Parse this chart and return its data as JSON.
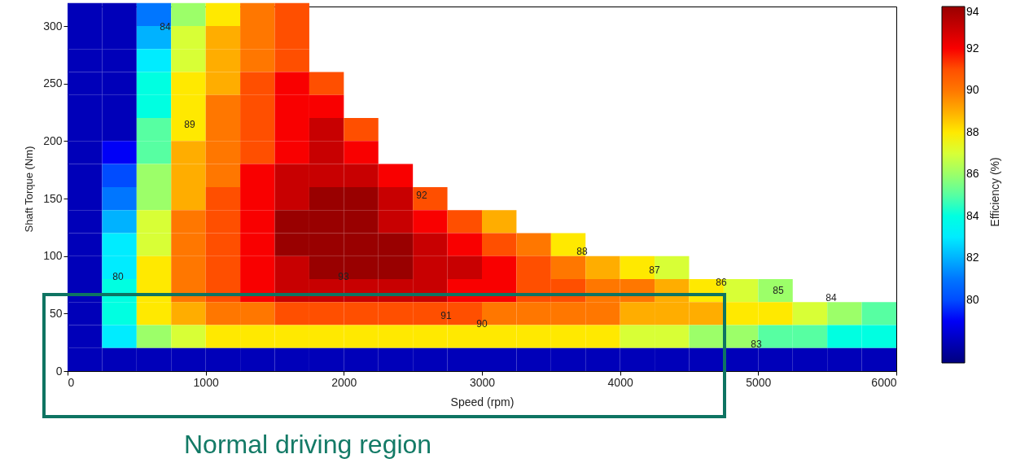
{
  "chart_data": {
    "type": "heatmap",
    "xlabel": "Speed (rpm)",
    "ylabel": "Shaft Torque (Nm)",
    "clabel": "Efficiency (%)",
    "x": [
      125,
      375,
      625,
      875,
      1125,
      1375,
      1625,
      1875,
      2125,
      2375,
      2625,
      2875,
      3125,
      3375,
      3625,
      3875,
      4125,
      4375,
      4625,
      4875,
      5125,
      5375,
      5625,
      5875
    ],
    "y": [
      310,
      290,
      270,
      250,
      230,
      210,
      190,
      170,
      150,
      130,
      110,
      90,
      70,
      50,
      30,
      10
    ],
    "cells": [
      [
        78,
        78,
        81,
        86,
        88,
        90,
        91,
        null,
        null,
        null,
        null,
        null,
        null,
        null,
        null,
        null,
        null,
        null,
        null,
        null,
        null,
        null,
        null,
        null
      ],
      [
        78,
        78,
        82,
        87,
        89,
        90,
        91,
        null,
        null,
        null,
        null,
        null,
        null,
        null,
        null,
        null,
        null,
        null,
        null,
        null,
        null,
        null,
        null,
        null
      ],
      [
        78,
        78,
        83,
        87,
        89,
        90,
        91,
        null,
        null,
        null,
        null,
        null,
        null,
        null,
        null,
        null,
        null,
        null,
        null,
        null,
        null,
        null,
        null,
        null
      ],
      [
        78,
        78,
        84,
        88,
        89,
        91,
        92,
        91,
        null,
        null,
        null,
        null,
        null,
        null,
        null,
        null,
        null,
        null,
        null,
        null,
        null,
        null,
        null,
        null
      ],
      [
        78,
        78,
        84,
        88,
        90,
        91,
        92,
        92,
        null,
        null,
        null,
        null,
        null,
        null,
        null,
        null,
        null,
        null,
        null,
        null,
        null,
        null,
        null,
        null
      ],
      [
        78,
        78,
        85,
        88,
        90,
        91,
        92,
        93,
        91,
        null,
        null,
        null,
        null,
        null,
        null,
        null,
        null,
        null,
        null,
        null,
        null,
        null,
        null,
        null
      ],
      [
        78,
        79,
        85,
        89,
        90,
        91,
        92,
        93,
        92,
        null,
        null,
        null,
        null,
        null,
        null,
        null,
        null,
        null,
        null,
        null,
        null,
        null,
        null,
        null
      ],
      [
        78,
        80,
        86,
        89,
        90,
        92,
        93,
        93,
        93,
        92,
        null,
        null,
        null,
        null,
        null,
        null,
        null,
        null,
        null,
        null,
        null,
        null,
        null,
        null
      ],
      [
        78,
        81,
        86,
        89,
        91,
        92,
        93,
        94,
        94,
        93,
        91,
        null,
        null,
        null,
        null,
        null,
        null,
        null,
        null,
        null,
        null,
        null,
        null,
        null
      ],
      [
        78,
        82,
        87,
        90,
        91,
        92,
        94,
        94,
        94,
        93,
        92,
        91,
        89,
        null,
        null,
        null,
        null,
        null,
        null,
        null,
        null,
        null,
        null,
        null
      ],
      [
        78,
        83,
        87,
        90,
        91,
        92,
        94,
        94,
        94,
        94,
        93,
        92,
        91,
        90,
        88,
        null,
        null,
        null,
        null,
        null,
        null,
        null,
        null,
        null
      ],
      [
        78,
        83,
        88,
        90,
        91,
        92,
        93,
        94,
        94,
        94,
        93,
        93,
        92,
        91,
        90,
        89,
        88,
        87,
        null,
        null,
        null,
        null,
        null,
        null
      ],
      [
        78,
        84,
        88,
        90,
        91,
        92,
        93,
        93,
        93,
        93,
        93,
        92,
        92,
        91,
        91,
        90,
        90,
        89,
        88,
        87,
        86,
        null,
        null,
        null
      ],
      [
        78,
        84,
        88,
        89,
        90,
        90,
        91,
        91,
        91,
        91,
        91,
        91,
        90,
        90,
        90,
        90,
        89,
        89,
        89,
        88,
        88,
        87,
        86,
        85
      ],
      [
        78,
        83,
        86,
        87,
        88,
        88,
        88,
        88,
        88,
        88,
        88,
        88,
        88,
        88,
        88,
        88,
        87,
        87,
        86,
        86,
        85,
        85,
        84,
        84
      ],
      [
        78,
        78,
        78,
        78,
        78,
        78,
        78,
        78,
        78,
        78,
        78,
        78,
        78,
        78,
        78,
        78,
        78,
        78,
        78,
        78,
        78,
        78,
        78,
        78
      ]
    ],
    "xlim": [
      0,
      6000
    ],
    "xticks": [
      0,
      1000,
      2000,
      3000,
      4000,
      5000,
      6000
    ],
    "ylim": [
      0,
      317
    ],
    "yticks": [
      0,
      50,
      100,
      150,
      200,
      250,
      300
    ],
    "clim": [
      77,
      94
    ],
    "cticks": [
      80,
      82,
      84,
      86,
      88,
      90,
      92,
      94
    ],
    "grid": false,
    "annotations": [
      "84",
      "89",
      "80",
      "93",
      "92",
      "91",
      "90",
      "88",
      "87",
      "86",
      "85",
      "84",
      "83",
      "Normal driving region"
    ]
  }
}
